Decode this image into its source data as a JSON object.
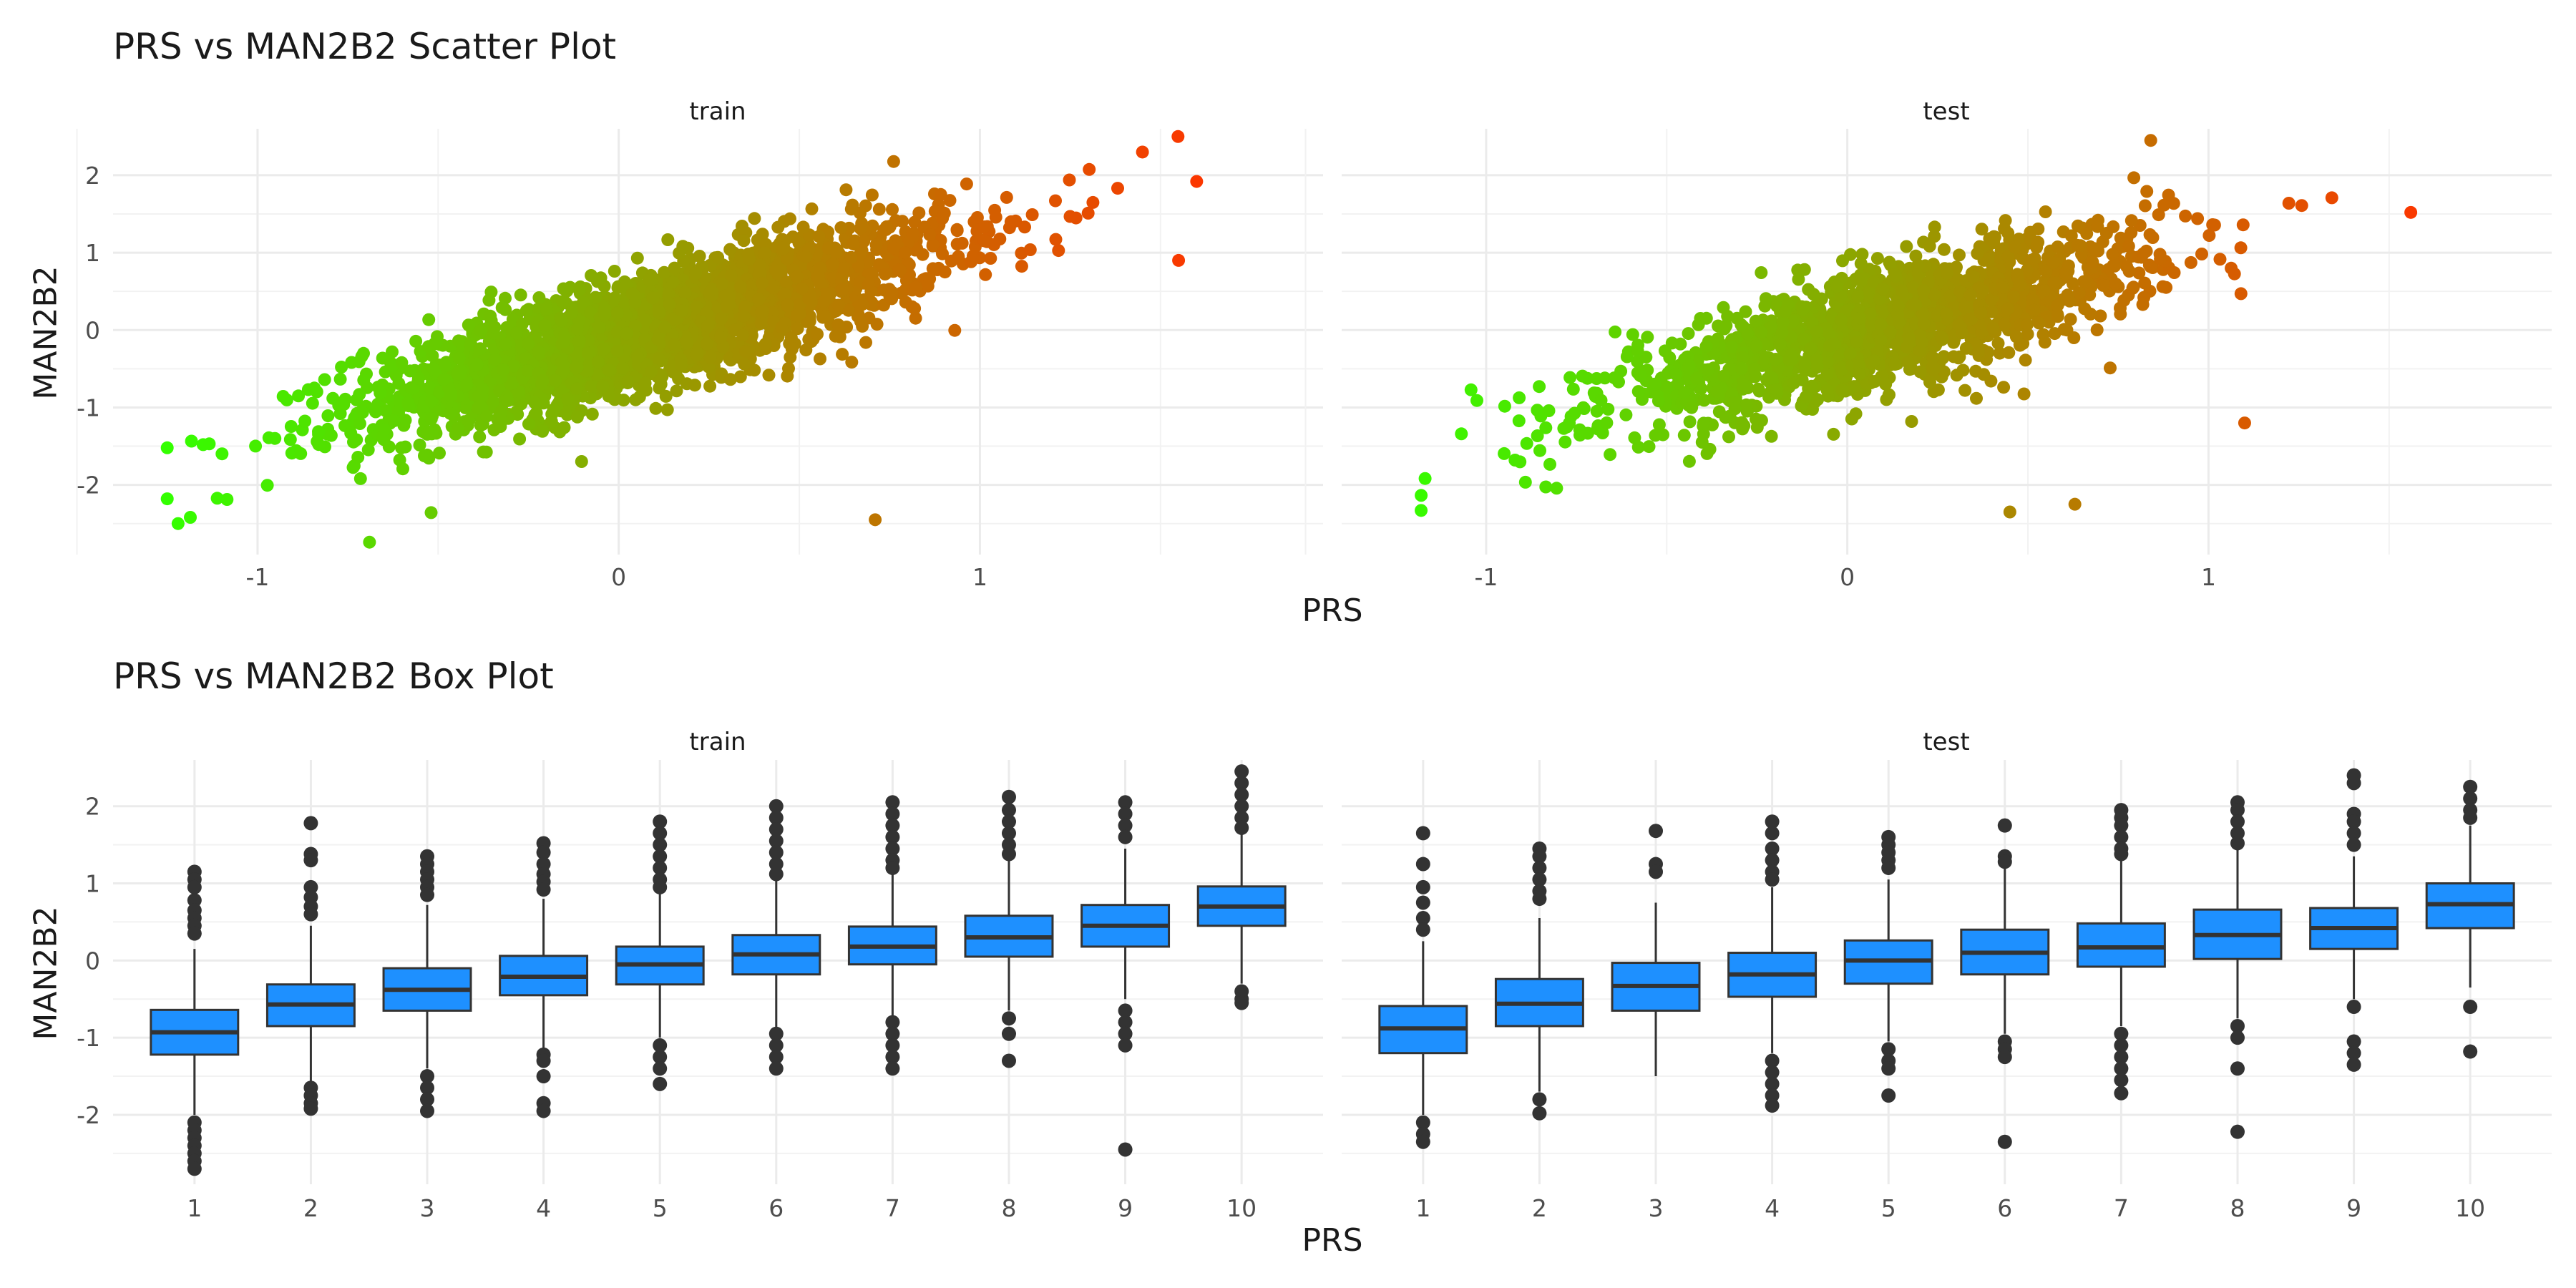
{
  "chart_data": [
    {
      "type": "scatter",
      "title": "PRS vs MAN2B2 Scatter Plot",
      "xlabel": "PRS",
      "ylabel": "MAN2B2",
      "panels": [
        "train",
        "test"
      ],
      "xlim": [
        -1.4,
        1.95
      ],
      "ylim": [
        -2.9,
        2.6
      ],
      "xticks": [
        "-1",
        "0",
        "1"
      ],
      "yticks": [
        "-2",
        "-1",
        "0",
        "1",
        "2"
      ],
      "color_gradient": [
        "#33ff00",
        "#ff3300"
      ],
      "grid": true,
      "series": [
        {
          "panel": "train",
          "x_mean": 0.1,
          "x_sd": 0.4,
          "slope": 1.28,
          "intercept": -0.1,
          "noise_sd": 0.38,
          "x_range": [
            -1.25,
            1.65
          ],
          "notable_points": [
            [
              1.6,
              1.92
            ],
            [
              1.55,
              0.9
            ],
            [
              0.71,
              -2.45
            ],
            [
              -1.22,
              -2.5
            ],
            [
              -1.25,
              -2.18
            ],
            [
              -0.69,
              -2.74
            ],
            [
              1.45,
              2.3
            ]
          ]
        },
        {
          "panel": "test",
          "x_mean": 0.1,
          "x_sd": 0.38,
          "slope": 1.25,
          "intercept": -0.1,
          "noise_sd": 0.38,
          "x_range": [
            -1.18,
            1.56
          ],
          "notable_points": [
            [
              -1.18,
              -2.33
            ],
            [
              1.56,
              1.52
            ],
            [
              0.63,
              -2.25
            ],
            [
              0.45,
              -2.35
            ],
            [
              1.1,
              -1.2
            ],
            [
              0.84,
              2.45
            ]
          ]
        }
      ]
    },
    {
      "type": "box",
      "title": "PRS vs MAN2B2 Box Plot",
      "xlabel": "PRS",
      "ylabel": "MAN2B2",
      "panels": [
        "train",
        "test"
      ],
      "categories": [
        "1",
        "2",
        "3",
        "4",
        "5",
        "6",
        "7",
        "8",
        "9",
        "10"
      ],
      "ylim": [
        -2.9,
        2.6
      ],
      "yticks": [
        "-2",
        "-1",
        "0",
        "1",
        "2"
      ],
      "fill_color": "#1e90ff",
      "grid": true,
      "series": [
        {
          "panel": "train",
          "boxes": [
            {
              "q1": -1.22,
              "median": -0.93,
              "q3": -0.64,
              "lower_whisker": -2.0,
              "upper_whisker": 0.15,
              "outliers": [
                1.15,
                1.05,
                0.95,
                0.78,
                0.65,
                0.55,
                0.45,
                0.35,
                -2.1,
                -2.2,
                -2.3,
                -2.4,
                -2.5,
                -2.6,
                -2.7
              ]
            },
            {
              "q1": -0.85,
              "median": -0.57,
              "q3": -0.31,
              "lower_whisker": -1.6,
              "upper_whisker": 0.45,
              "outliers": [
                1.78,
                1.38,
                1.3,
                0.95,
                0.82,
                0.7,
                0.6,
                -1.65,
                -1.75,
                -1.85,
                -1.92
              ]
            },
            {
              "q1": -0.65,
              "median": -0.38,
              "q3": -0.1,
              "lower_whisker": -1.4,
              "upper_whisker": 0.72,
              "outliers": [
                1.35,
                1.25,
                1.15,
                1.05,
                0.95,
                0.85,
                -1.5,
                -1.65,
                -1.8,
                -1.95
              ]
            },
            {
              "q1": -0.45,
              "median": -0.21,
              "q3": 0.06,
              "lower_whisker": -1.15,
              "upper_whisker": 0.8,
              "outliers": [
                1.52,
                1.4,
                1.25,
                1.12,
                1.02,
                0.92,
                -1.22,
                -1.3,
                -1.5,
                -1.85,
                -1.95
              ]
            },
            {
              "q1": -0.31,
              "median": -0.05,
              "q3": 0.18,
              "lower_whisker": -1.0,
              "upper_whisker": 0.9,
              "outliers": [
                1.8,
                1.65,
                1.5,
                1.35,
                1.2,
                1.05,
                0.95,
                -1.1,
                -1.25,
                -1.4,
                -1.6
              ]
            },
            {
              "q1": -0.18,
              "median": 0.08,
              "q3": 0.33,
              "lower_whisker": -0.9,
              "upper_whisker": 1.05,
              "outliers": [
                2.0,
                1.85,
                1.7,
                1.55,
                1.4,
                1.25,
                1.12,
                -0.95,
                -1.1,
                -1.25,
                -1.4
              ]
            },
            {
              "q1": -0.05,
              "median": 0.18,
              "q3": 0.44,
              "lower_whisker": -0.75,
              "upper_whisker": 1.15,
              "outliers": [
                2.05,
                1.9,
                1.75,
                1.6,
                1.45,
                1.3,
                1.2,
                -0.8,
                -0.95,
                -1.1,
                -1.25,
                -1.4
              ]
            },
            {
              "q1": 0.05,
              "median": 0.3,
              "q3": 0.58,
              "lower_whisker": -0.65,
              "upper_whisker": 1.3,
              "outliers": [
                2.12,
                1.95,
                1.8,
                1.65,
                1.5,
                1.38,
                -0.75,
                -0.95,
                -1.3
              ]
            },
            {
              "q1": 0.18,
              "median": 0.45,
              "q3": 0.72,
              "lower_whisker": -0.5,
              "upper_whisker": 1.45,
              "outliers": [
                2.05,
                1.9,
                1.75,
                1.6,
                -0.65,
                -0.8,
                -0.95,
                -1.1,
                -2.45
              ]
            },
            {
              "q1": 0.45,
              "median": 0.7,
              "q3": 0.96,
              "lower_whisker": -0.3,
              "upper_whisker": 1.65,
              "outliers": [
                2.45,
                2.3,
                2.15,
                2.0,
                1.85,
                1.72,
                -0.4,
                -0.5,
                -0.55
              ]
            }
          ]
        },
        {
          "panel": "test",
          "boxes": [
            {
              "q1": -1.2,
              "median": -0.88,
              "q3": -0.59,
              "lower_whisker": -2.0,
              "upper_whisker": 0.25,
              "outliers": [
                1.65,
                1.25,
                0.95,
                0.75,
                0.55,
                0.4,
                -2.1,
                -2.25,
                -2.35
              ]
            },
            {
              "q1": -0.85,
              "median": -0.56,
              "q3": -0.24,
              "lower_whisker": -1.7,
              "upper_whisker": 0.55,
              "outliers": [
                1.45,
                1.35,
                1.2,
                1.05,
                0.9,
                0.8,
                -1.8,
                -1.98
              ]
            },
            {
              "q1": -0.65,
              "median": -0.33,
              "q3": -0.03,
              "lower_whisker": -1.5,
              "upper_whisker": 0.75,
              "outliers": [
                1.68,
                1.25,
                1.15
              ]
            },
            {
              "q1": -0.47,
              "median": -0.18,
              "q3": 0.1,
              "lower_whisker": -1.2,
              "upper_whisker": 0.95,
              "outliers": [
                1.8,
                1.65,
                1.45,
                1.3,
                1.15,
                1.05,
                -1.3,
                -1.45,
                -1.6,
                -1.75,
                -1.88
              ]
            },
            {
              "q1": -0.3,
              "median": 0.0,
              "q3": 0.26,
              "lower_whisker": -1.05,
              "upper_whisker": 1.05,
              "outliers": [
                1.6,
                1.5,
                1.4,
                1.3,
                1.2,
                -1.15,
                -1.3,
                -1.4,
                -1.75
              ]
            },
            {
              "q1": -0.18,
              "median": 0.1,
              "q3": 0.4,
              "lower_whisker": -0.95,
              "upper_whisker": 1.2,
              "outliers": [
                1.75,
                1.35,
                1.28,
                -1.05,
                -1.15,
                -1.25,
                -2.35
              ]
            },
            {
              "q1": -0.08,
              "median": 0.17,
              "q3": 0.48,
              "lower_whisker": -0.85,
              "upper_whisker": 1.3,
              "outliers": [
                1.95,
                1.85,
                1.75,
                1.6,
                1.45,
                1.38,
                -0.95,
                -1.1,
                -1.25,
                -1.4,
                -1.55,
                -1.72
              ]
            },
            {
              "q1": 0.02,
              "median": 0.33,
              "q3": 0.66,
              "lower_whisker": -0.75,
              "upper_whisker": 1.45,
              "outliers": [
                2.05,
                1.95,
                1.8,
                1.65,
                1.52,
                -0.85,
                -1.0,
                -1.4,
                -2.22
              ]
            },
            {
              "q1": 0.15,
              "median": 0.42,
              "q3": 0.68,
              "lower_whisker": -0.5,
              "upper_whisker": 1.35,
              "outliers": [
                2.4,
                2.3,
                1.9,
                1.8,
                1.65,
                1.5,
                -0.6,
                -1.05,
                -1.2,
                -1.35
              ]
            },
            {
              "q1": 0.42,
              "median": 0.73,
              "q3": 1.0,
              "lower_whisker": -0.35,
              "upper_whisker": 1.75,
              "outliers": [
                2.25,
                2.1,
                1.95,
                1.85,
                -0.6,
                -1.18
              ]
            }
          ]
        }
      ]
    }
  ]
}
